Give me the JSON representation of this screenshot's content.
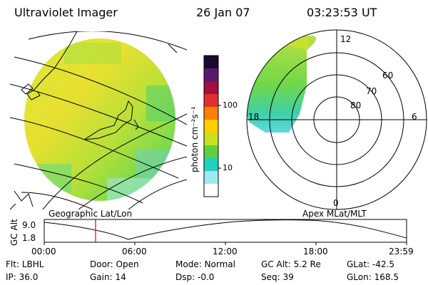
{
  "header": {
    "title": "Ultraviolet Imager",
    "date": "26 Jan 07",
    "time": "03:23:53 UT"
  },
  "colorbar": {
    "label": "photon cm⁻²s⁻¹",
    "ticks": [
      "100",
      "10"
    ],
    "colors": [
      "#1a0a30",
      "#5a1a6a",
      "#a01040",
      "#e03030",
      "#ff8000",
      "#ffd000",
      "#c8e020",
      "#60d040",
      "#20d0c0",
      "#a0e8f0",
      "#ffffff"
    ]
  },
  "geo_map": {
    "label": "Geographic Lat/Lon"
  },
  "polar_plot": {
    "label": "Apex MLat/MLT",
    "mlt_labels": {
      "top": "12",
      "left": "18",
      "right": "6",
      "bottom": "0"
    },
    "lat_labels": [
      "60",
      "70",
      "80"
    ]
  },
  "altitude_plot": {
    "ylabel": "GC Alt",
    "yticks": [
      "9.0",
      "1.8"
    ],
    "xticks": [
      "00:00",
      "06:00",
      "12:00",
      "18:00",
      "23:59"
    ],
    "current_time_hours": 3.4,
    "colors": {
      "marker": "#e00000"
    }
  },
  "status": {
    "row1": [
      {
        "key": "Flt:",
        "value": "LBHL"
      },
      {
        "key": "Door:",
        "value": "Open"
      },
      {
        "key": "Mode:",
        "value": "Normal"
      },
      {
        "key": "GC Alt:",
        "value": "5.2 Re"
      },
      {
        "key": "GLat:",
        "value": "-42.5"
      }
    ],
    "row2": [
      {
        "key": "IP:",
        "value": "36.0"
      },
      {
        "key": "Gain:",
        "value": "14"
      },
      {
        "key": "Dsp:",
        "value": "-0.0"
      },
      {
        "key": "Seq:",
        "value": "39"
      },
      {
        "key": "GLon:",
        "value": "168.5"
      }
    ]
  }
}
